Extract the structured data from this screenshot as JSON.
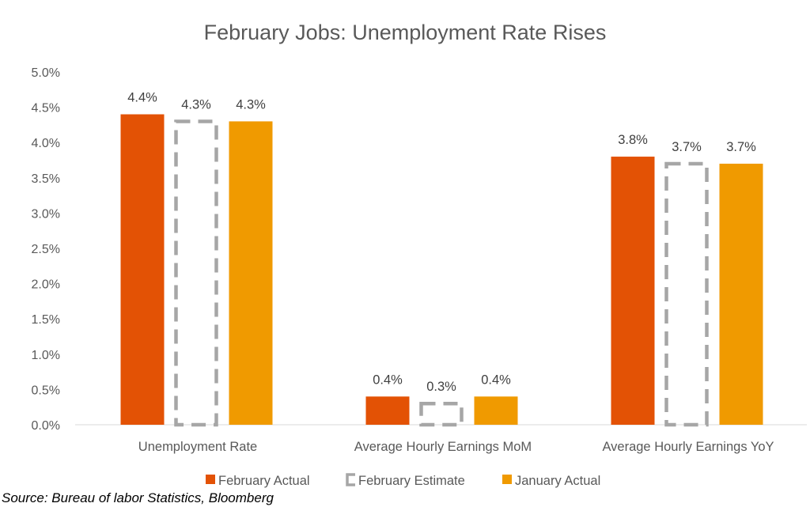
{
  "chart_data": {
    "type": "bar",
    "title": "February Jobs: Unemployment Rate Rises",
    "categories": [
      "Unemployment Rate",
      "Average Hourly Earnings MoM",
      "Average Hourly Earnings YoY"
    ],
    "series": [
      {
        "name": "February Actual",
        "values": [
          4.4,
          0.4,
          3.8
        ],
        "labels": [
          "4.4%",
          "0.4%",
          "3.8%"
        ],
        "color": "#E35205",
        "style": "solid"
      },
      {
        "name": "February Estimate",
        "values": [
          4.3,
          0.3,
          3.7
        ],
        "labels": [
          "4.3%",
          "0.3%",
          "3.7%"
        ],
        "color": "#A6A6A6",
        "style": "dashed-outline"
      },
      {
        "name": "January Actual",
        "values": [
          4.3,
          0.4,
          3.7
        ],
        "labels": [
          "4.3%",
          "0.4%",
          "3.7%"
        ],
        "color": "#F09A00",
        "style": "solid"
      }
    ],
    "yticks": [
      "0.0%",
      "0.5%",
      "1.0%",
      "1.5%",
      "2.0%",
      "2.5%",
      "3.0%",
      "3.5%",
      "4.0%",
      "4.5%",
      "5.0%"
    ],
    "ylim": [
      0,
      5
    ],
    "ylabel": "",
    "xlabel": "",
    "grid": false,
    "legend": "bottom"
  },
  "source": "Source: Bureau of labor Statistics, Bloomberg"
}
